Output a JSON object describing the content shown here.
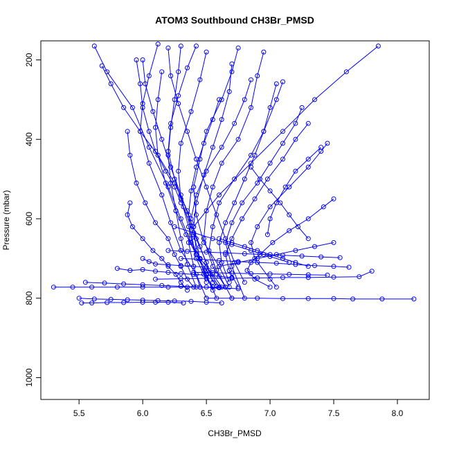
{
  "chart_data": {
    "type": "line",
    "title": "ATOM3 Southbound CH3Br_PMSD",
    "xlabel": "CH3Br_PMSD",
    "ylabel": "Pressure (mbar)",
    "xlim": [
      5.2,
      8.25
    ],
    "ylim": [
      1055,
      152
    ],
    "y_reversed": true,
    "x_ticks": [
      5.5,
      6.0,
      6.5,
      7.0,
      7.5,
      8.0
    ],
    "x_tick_labels": [
      "5.5",
      "6.0",
      "6.5",
      "7.0",
      "7.5",
      "8.0"
    ],
    "y_ticks": [
      200,
      400,
      600,
      800,
      1000
    ],
    "y_tick_labels": [
      "200",
      "400",
      "600",
      "800",
      "1000"
    ],
    "series_color": "#0000ff",
    "marker": "open-circle",
    "series": [
      {
        "x": [
          5.62,
          5.72,
          5.92,
          6.05,
          6.2,
          6.3,
          6.38,
          6.45,
          6.55,
          6.62
        ],
        "y": [
          165,
          230,
          320,
          420,
          520,
          600,
          660,
          700,
          740,
          772
        ]
      },
      {
        "x": [
          6.12,
          6.05,
          6.0,
          5.98,
          6.05,
          6.15,
          6.22,
          6.3,
          6.42,
          6.5
        ],
        "y": [
          160,
          240,
          310,
          380,
          460,
          540,
          610,
          680,
          740,
          800
        ]
      },
      {
        "x": [
          6.75,
          6.7,
          6.62,
          6.5,
          6.45,
          6.4,
          6.42,
          6.48,
          6.6,
          6.68
        ],
        "y": [
          170,
          230,
          300,
          380,
          450,
          520,
          590,
          660,
          720,
          772
        ]
      },
      {
        "x": [
          7.1,
          7.05,
          6.95,
          6.85,
          6.72,
          6.6,
          6.55,
          6.52,
          6.58,
          6.7
        ],
        "y": [
          255,
          300,
          380,
          440,
          500,
          560,
          620,
          680,
          730,
          800
        ]
      },
      {
        "x": [
          5.88,
          5.9,
          5.95,
          6.02,
          6.1,
          6.2,
          6.25,
          6.3,
          6.35,
          6.4
        ],
        "y": [
          380,
          440,
          510,
          560,
          610,
          650,
          690,
          720,
          752,
          772
        ]
      },
      {
        "x": [
          7.45,
          7.4,
          7.3,
          7.15,
          7.0,
          6.9,
          6.85,
          6.88,
          7.0,
          7.05
        ],
        "y": [
          410,
          430,
          470,
          520,
          570,
          620,
          660,
          700,
          752,
          772
        ]
      },
      {
        "x": [
          6.42,
          6.35,
          6.28,
          6.22,
          6.2,
          6.25,
          6.32,
          6.4,
          6.45,
          6.5
        ],
        "y": [
          165,
          220,
          290,
          360,
          430,
          500,
          570,
          640,
          700,
          760
        ]
      },
      {
        "x": [
          6.95,
          6.9,
          6.85,
          6.75,
          6.62,
          6.55,
          6.5,
          6.48,
          6.55,
          6.65
        ],
        "y": [
          180,
          240,
          320,
          400,
          460,
          520,
          580,
          650,
          720,
          772
        ]
      },
      {
        "x": [
          5.68,
          5.75,
          5.85,
          5.98,
          6.12,
          6.25,
          6.35,
          6.42,
          6.5,
          6.55
        ],
        "y": [
          215,
          260,
          320,
          380,
          440,
          510,
          580,
          650,
          710,
          760
        ]
      },
      {
        "x": [
          7.25,
          7.2,
          7.1,
          7.0,
          6.9,
          6.78,
          6.7,
          6.65,
          6.7,
          6.8
        ],
        "y": [
          320,
          360,
          410,
          460,
          510,
          560,
          610,
          660,
          720,
          800
        ]
      },
      {
        "x": [
          6.2,
          6.22,
          6.28,
          6.35,
          6.42,
          6.5,
          6.58,
          6.65,
          6.72,
          6.8
        ],
        "y": [
          170,
          240,
          310,
          380,
          450,
          520,
          590,
          650,
          710,
          760
        ]
      },
      {
        "x": [
          6.5,
          6.45,
          6.38,
          6.3,
          6.28,
          6.3,
          6.36,
          6.42,
          6.5,
          6.58
        ],
        "y": [
          180,
          250,
          330,
          410,
          480,
          550,
          620,
          690,
          740,
          800
        ]
      },
      {
        "x": [
          7.5,
          7.42,
          7.3,
          7.15,
          7.02,
          6.92,
          6.85,
          6.82,
          6.88,
          7.0
        ],
        "y": [
          550,
          570,
          600,
          630,
          660,
          690,
          710,
          730,
          752,
          772
        ]
      },
      {
        "x": [
          5.9,
          5.88,
          5.92,
          6.0,
          6.08,
          6.15,
          6.2,
          6.26,
          6.3,
          6.35
        ],
        "y": [
          560,
          590,
          620,
          650,
          680,
          700,
          720,
          740,
          760,
          780
        ]
      },
      {
        "x": [
          6.85,
          6.8,
          6.72,
          6.62,
          6.5,
          6.42,
          6.38,
          6.36,
          6.4,
          6.45
        ],
        "y": [
          250,
          300,
          360,
          420,
          480,
          540,
          600,
          660,
          720,
          772
        ]
      },
      {
        "x": [
          6.3,
          6.28,
          6.25,
          6.22,
          6.2,
          6.22,
          6.26,
          6.3,
          6.35,
          6.42
        ],
        "y": [
          165,
          230,
          300,
          370,
          440,
          510,
          580,
          650,
          715,
          772
        ]
      },
      {
        "x": [
          7.05,
          7.0,
          6.95,
          6.88,
          6.8,
          6.72,
          6.65,
          6.6,
          6.62,
          6.68
        ],
        "y": [
          260,
          320,
          380,
          440,
          500,
          560,
          610,
          660,
          710,
          760
        ]
      },
      {
        "x": [
          6.0,
          6.02,
          6.08,
          6.15,
          6.22,
          6.3,
          6.38,
          6.45,
          6.52,
          6.6
        ],
        "y": [
          200,
          260,
          330,
          400,
          470,
          540,
          610,
          670,
          730,
          772
        ]
      },
      {
        "x": [
          6.6,
          6.55,
          6.48,
          6.42,
          6.38,
          6.36,
          6.38,
          6.42,
          6.48,
          6.55
        ],
        "y": [
          300,
          350,
          410,
          470,
          530,
          590,
          650,
          700,
          740,
          772
        ]
      },
      {
        "x": [
          7.3,
          7.2,
          7.1,
          6.98,
          6.88,
          6.78,
          6.7,
          6.65,
          6.68,
          6.75
        ],
        "y": [
          360,
          400,
          450,
          500,
          550,
          600,
          650,
          690,
          730,
          772
        ]
      },
      {
        "x": [
          6.15,
          6.12,
          6.1,
          6.12,
          6.18,
          6.26,
          6.34,
          6.42,
          6.5,
          6.58
        ],
        "y": [
          230,
          300,
          370,
          440,
          510,
          580,
          640,
          690,
          730,
          770
        ]
      },
      {
        "x": [
          6.7,
          6.68,
          6.62,
          6.55,
          6.48,
          6.42,
          6.4,
          6.42,
          6.48,
          6.55
        ],
        "y": [
          210,
          280,
          350,
          420,
          490,
          560,
          620,
          680,
          730,
          780
        ]
      },
      {
        "x": [
          5.8,
          5.9,
          6.0,
          6.1,
          6.2,
          6.3,
          6.4,
          6.5,
          6.6,
          6.7
        ],
        "y": [
          725,
          730,
          728,
          732,
          735,
          738,
          740,
          742,
          745,
          748
        ]
      },
      {
        "x": [
          6.3,
          6.45,
          6.6,
          6.75,
          6.9,
          7.05,
          7.2,
          7.35,
          7.5,
          7.62
        ],
        "y": [
          700,
          702,
          705,
          708,
          710,
          712,
          715,
          718,
          720,
          722
        ]
      },
      {
        "x": [
          6.2,
          6.35,
          6.5,
          6.65,
          6.8,
          6.95,
          7.1,
          7.25,
          7.4,
          7.55
        ],
        "y": [
          680,
          682,
          684,
          686,
          688,
          690,
          692,
          694,
          696,
          698
        ]
      },
      {
        "x": [
          5.5,
          5.62,
          5.75,
          5.88,
          6.0,
          6.12,
          6.25,
          6.38,
          6.5,
          6.62
        ],
        "y": [
          800,
          802,
          803,
          804,
          805,
          806,
          807,
          808,
          810,
          812
        ]
      },
      {
        "x": [
          6.5,
          6.7,
          6.9,
          7.1,
          7.3,
          7.5,
          7.65,
          7.88,
          8.13
        ],
        "y": [
          800,
          800,
          800,
          801,
          801,
          801,
          802,
          802,
          802
        ]
      },
      {
        "x": [
          5.3,
          5.45,
          5.6,
          5.8,
          6.0,
          6.2,
          6.35,
          6.5,
          6.65
        ],
        "y": [
          772,
          772,
          772,
          772,
          772,
          772,
          772,
          772,
          772
        ]
      },
      {
        "x": [
          5.55,
          5.7,
          5.85,
          6.0,
          6.15,
          6.3,
          6.45,
          6.6,
          6.75
        ],
        "y": [
          760,
          762,
          764,
          766,
          768,
          770,
          772,
          774,
          776
        ]
      },
      {
        "x": [
          6.1,
          6.3,
          6.5,
          6.7,
          6.9,
          7.1,
          7.3,
          7.5,
          7.7,
          7.8
        ],
        "y": [
          752,
          751,
          750,
          750,
          749,
          748,
          748,
          747,
          746,
          732
        ]
      },
      {
        "x": [
          6.4,
          6.55,
          6.7,
          6.85,
          7.0,
          7.15,
          7.3,
          7.45
        ],
        "y": [
          735,
          736,
          737,
          738,
          739,
          740,
          741,
          742
        ]
      },
      {
        "x": [
          5.52,
          5.6,
          5.72,
          5.85,
          6.0,
          6.1,
          6.2,
          6.32
        ],
        "y": [
          812,
          812,
          811,
          811,
          810,
          810,
          810,
          812
        ]
      },
      {
        "x": [
          6.0,
          6.05,
          6.1,
          6.2,
          6.3,
          6.4,
          6.5
        ],
        "y": [
          700,
          708,
          714,
          716,
          718,
          720,
          722
        ]
      },
      {
        "x": [
          6.6,
          6.7,
          6.8,
          6.9,
          7.0,
          7.1,
          7.2,
          7.3
        ],
        "y": [
          650,
          660,
          670,
          680,
          690,
          700,
          710,
          720
        ]
      },
      {
        "x": [
          6.25,
          6.4,
          6.55,
          6.7,
          6.85,
          7.0,
          7.15
        ],
        "y": [
          620,
          635,
          650,
          665,
          680,
          695,
          710
        ]
      },
      {
        "x": [
          7.5,
          7.35,
          7.2,
          7.05,
          6.9,
          6.75,
          6.6
        ],
        "y": [
          660,
          670,
          680,
          690,
          700,
          710,
          720
        ]
      },
      {
        "x": [
          7.85,
          7.6,
          7.35,
          7.1,
          6.85,
          6.6,
          6.4
        ],
        "y": [
          165,
          230,
          300,
          380,
          460,
          540,
          620
        ]
      },
      {
        "x": [
          7.4,
          7.3,
          7.2,
          7.12,
          7.05,
          7.0,
          6.98
        ],
        "y": [
          420,
          450,
          480,
          520,
          560,
          600,
          640
        ]
      },
      {
        "x": [
          5.95,
          5.98,
          6.0,
          6.05,
          6.1,
          6.18,
          6.25,
          6.3
        ],
        "y": [
          200,
          260,
          320,
          380,
          430,
          480,
          520,
          560
        ]
      },
      {
        "x": [
          6.85,
          6.92,
          7.0,
          7.08,
          7.15,
          7.22,
          7.3
        ],
        "y": [
          470,
          500,
          530,
          560,
          590,
          620,
          650
        ]
      }
    ]
  }
}
